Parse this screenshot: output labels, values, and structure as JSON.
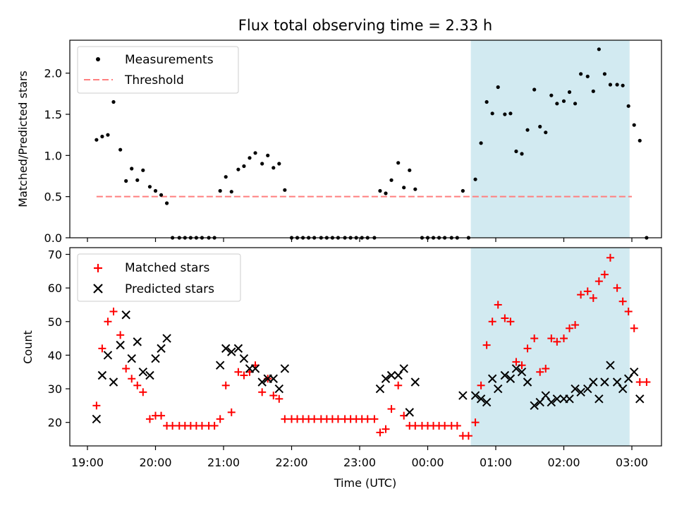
{
  "title": "Flux total observing time = 2.33 h",
  "xlabel": "Time (UTC)",
  "xticks": [
    "19:00",
    "20:00",
    "21:00",
    "22:00",
    "23:00",
    "00:00",
    "01:00",
    "02:00",
    "03:00"
  ],
  "colors": {
    "measurement": "#000000",
    "threshold": "#ff7f7f",
    "matched": "#ff0000",
    "predicted": "#000000",
    "shade": "#add8e6"
  },
  "chart_data": [
    {
      "type": "scatter",
      "ylabel": "Matched/Predicted stars",
      "ylim": [
        0,
        2.4
      ],
      "yticks": [
        "0.0",
        "0.5",
        "1.0",
        "1.5",
        "2.0"
      ],
      "legend": {
        "placement": "upper-left",
        "entries": [
          "Measurements",
          "Threshold"
        ]
      },
      "threshold": {
        "value": 0.5,
        "x_start": "19:08",
        "x_end": "03:00"
      },
      "shaded_interval": [
        "00:38",
        "02:58"
      ],
      "series": [
        {
          "name": "Measurements",
          "points": [
            [
              "19:08",
              1.19
            ],
            [
              "19:13",
              1.23
            ],
            [
              "19:18",
              1.25
            ],
            [
              "19:23",
              1.65
            ],
            [
              "19:29",
              1.07
            ],
            [
              "19:34",
              0.69
            ],
            [
              "19:39",
              0.84
            ],
            [
              "19:44",
              0.7
            ],
            [
              "19:49",
              0.82
            ],
            [
              "19:55",
              0.62
            ],
            [
              "20:00",
              0.57
            ],
            [
              "20:05",
              0.52
            ],
            [
              "20:10",
              0.42
            ],
            [
              "20:15",
              0
            ],
            [
              "20:21",
              0
            ],
            [
              "20:26",
              0
            ],
            [
              "20:31",
              0
            ],
            [
              "20:36",
              0
            ],
            [
              "20:41",
              0
            ],
            [
              "20:47",
              0
            ],
            [
              "20:52",
              0
            ],
            [
              "20:57",
              0.57
            ],
            [
              "21:02",
              0.74
            ],
            [
              "21:07",
              0.56
            ],
            [
              "21:13",
              0.83
            ],
            [
              "21:18",
              0.87
            ],
            [
              "21:23",
              0.97
            ],
            [
              "21:28",
              1.03
            ],
            [
              "21:34",
              0.9
            ],
            [
              "21:39",
              1.0
            ],
            [
              "21:44",
              0.85
            ],
            [
              "21:49",
              0.9
            ],
            [
              "21:54",
              0.58
            ],
            [
              "22:00",
              0
            ],
            [
              "22:05",
              0
            ],
            [
              "22:10",
              0
            ],
            [
              "22:15",
              0
            ],
            [
              "22:20",
              0
            ],
            [
              "22:26",
              0
            ],
            [
              "22:31",
              0
            ],
            [
              "22:36",
              0
            ],
            [
              "22:41",
              0
            ],
            [
              "22:47",
              0
            ],
            [
              "22:52",
              0
            ],
            [
              "22:57",
              0
            ],
            [
              "23:02",
              0
            ],
            [
              "23:07",
              0
            ],
            [
              "23:13",
              0
            ],
            [
              "23:18",
              0.57
            ],
            [
              "23:23",
              0.54
            ],
            [
              "23:28",
              0.7
            ],
            [
              "23:34",
              0.91
            ],
            [
              "23:39",
              0.61
            ],
            [
              "23:44",
              0.82
            ],
            [
              "23:49",
              0.59
            ],
            [
              "23:55",
              0
            ],
            [
              "00:00",
              0
            ],
            [
              "00:05",
              0
            ],
            [
              "00:10",
              0
            ],
            [
              "00:15",
              0
            ],
            [
              "00:21",
              0
            ],
            [
              "00:26",
              0
            ],
            [
              "00:31",
              0.57
            ],
            [
              "00:36",
              0
            ],
            [
              "00:42",
              0.71
            ],
            [
              "00:47",
              1.15
            ],
            [
              "00:52",
              1.65
            ],
            [
              "00:57",
              1.51
            ],
            [
              "01:02",
              1.83
            ],
            [
              "01:08",
              1.5
            ],
            [
              "01:13",
              1.51
            ],
            [
              "01:18",
              1.05
            ],
            [
              "01:23",
              1.02
            ],
            [
              "01:28",
              1.31
            ],
            [
              "01:34",
              1.8
            ],
            [
              "01:39",
              1.35
            ],
            [
              "01:44",
              1.28
            ],
            [
              "01:49",
              1.73
            ],
            [
              "01:54",
              1.63
            ],
            [
              "02:00",
              1.66
            ],
            [
              "02:05",
              1.77
            ],
            [
              "02:10",
              1.63
            ],
            [
              "02:15",
              1.99
            ],
            [
              "02:21",
              1.96
            ],
            [
              "02:26",
              1.78
            ],
            [
              "02:31",
              2.29
            ],
            [
              "02:36",
              1.99
            ],
            [
              "02:41",
              1.86
            ],
            [
              "02:47",
              1.86
            ],
            [
              "02:52",
              1.85
            ],
            [
              "02:57",
              1.6
            ],
            [
              "03:02",
              1.37
            ],
            [
              "03:07",
              1.18
            ],
            [
              "03:13",
              0
            ]
          ]
        }
      ]
    },
    {
      "type": "scatter",
      "ylabel": "Count",
      "ylim": [
        13,
        72
      ],
      "yticks": [
        "20",
        "30",
        "40",
        "50",
        "60",
        "70"
      ],
      "legend": {
        "placement": "upper-left",
        "entries": [
          "Matched stars",
          "Predicted stars"
        ]
      },
      "shaded_interval": [
        "00:38",
        "02:58"
      ],
      "series": [
        {
          "name": "Matched stars",
          "points": [
            [
              "19:08",
              25
            ],
            [
              "19:13",
              42
            ],
            [
              "19:18",
              50
            ],
            [
              "19:23",
              53
            ],
            [
              "19:29",
              46
            ],
            [
              "19:34",
              36
            ],
            [
              "19:39",
              33
            ],
            [
              "19:44",
              31
            ],
            [
              "19:49",
              29
            ],
            [
              "19:55",
              21
            ],
            [
              "20:00",
              22
            ],
            [
              "20:05",
              22
            ],
            [
              "20:10",
              19
            ],
            [
              "20:15",
              19
            ],
            [
              "20:21",
              19
            ],
            [
              "20:26",
              19
            ],
            [
              "20:31",
              19
            ],
            [
              "20:36",
              19
            ],
            [
              "20:41",
              19
            ],
            [
              "20:47",
              19
            ],
            [
              "20:52",
              19
            ],
            [
              "20:57",
              21
            ],
            [
              "21:02",
              31
            ],
            [
              "21:07",
              23
            ],
            [
              "21:13",
              35
            ],
            [
              "21:18",
              34
            ],
            [
              "21:23",
              35
            ],
            [
              "21:28",
              37
            ],
            [
              "21:34",
              29
            ],
            [
              "21:39",
              33
            ],
            [
              "21:44",
              28
            ],
            [
              "21:49",
              27
            ],
            [
              "21:54",
              21
            ],
            [
              "22:00",
              21
            ],
            [
              "22:05",
              21
            ],
            [
              "22:10",
              21
            ],
            [
              "22:15",
              21
            ],
            [
              "22:20",
              21
            ],
            [
              "22:26",
              21
            ],
            [
              "22:31",
              21
            ],
            [
              "22:36",
              21
            ],
            [
              "22:41",
              21
            ],
            [
              "22:47",
              21
            ],
            [
              "22:52",
              21
            ],
            [
              "22:57",
              21
            ],
            [
              "23:02",
              21
            ],
            [
              "23:07",
              21
            ],
            [
              "23:13",
              21
            ],
            [
              "23:18",
              17
            ],
            [
              "23:23",
              18
            ],
            [
              "23:28",
              24
            ],
            [
              "23:34",
              31
            ],
            [
              "23:39",
              22
            ],
            [
              "23:44",
              19
            ],
            [
              "23:49",
              19
            ],
            [
              "23:55",
              19
            ],
            [
              "00:00",
              19
            ],
            [
              "00:05",
              19
            ],
            [
              "00:10",
              19
            ],
            [
              "00:15",
              19
            ],
            [
              "00:21",
              19
            ],
            [
              "00:26",
              19
            ],
            [
              "00:31",
              16
            ],
            [
              "00:36",
              16
            ],
            [
              "00:42",
              20
            ],
            [
              "00:47",
              31
            ],
            [
              "00:52",
              43
            ],
            [
              "00:57",
              50
            ],
            [
              "01:02",
              55
            ],
            [
              "01:08",
              51
            ],
            [
              "01:13",
              50
            ],
            [
              "01:18",
              38
            ],
            [
              "01:23",
              37
            ],
            [
              "01:28",
              42
            ],
            [
              "01:34",
              45
            ],
            [
              "01:39",
              35
            ],
            [
              "01:44",
              36
            ],
            [
              "01:49",
              45
            ],
            [
              "01:54",
              44
            ],
            [
              "02:00",
              45
            ],
            [
              "02:05",
              48
            ],
            [
              "02:10",
              49
            ],
            [
              "02:15",
              58
            ],
            [
              "02:21",
              59
            ],
            [
              "02:26",
              57
            ],
            [
              "02:31",
              62
            ],
            [
              "02:36",
              64
            ],
            [
              "02:41",
              69
            ],
            [
              "02:47",
              60
            ],
            [
              "02:52",
              56
            ],
            [
              "02:57",
              53
            ],
            [
              "03:02",
              48
            ],
            [
              "03:07",
              32
            ],
            [
              "03:13",
              32
            ]
          ]
        },
        {
          "name": "Predicted stars",
          "points": [
            [
              "19:08",
              21
            ],
            [
              "19:13",
              34
            ],
            [
              "19:18",
              40
            ],
            [
              "19:23",
              32
            ],
            [
              "19:29",
              43
            ],
            [
              "19:34",
              52
            ],
            [
              "19:39",
              39
            ],
            [
              "19:44",
              44
            ],
            [
              "19:49",
              35
            ],
            [
              "19:55",
              34
            ],
            [
              "20:00",
              39
            ],
            [
              "20:05",
              42
            ],
            [
              "20:10",
              45
            ],
            [
              "20:57",
              37
            ],
            [
              "21:02",
              42
            ],
            [
              "21:07",
              41
            ],
            [
              "21:13",
              42
            ],
            [
              "21:18",
              39
            ],
            [
              "21:23",
              36
            ],
            [
              "21:28",
              36
            ],
            [
              "21:34",
              32
            ],
            [
              "21:39",
              33
            ],
            [
              "21:44",
              33
            ],
            [
              "21:49",
              30
            ],
            [
              "21:54",
              36
            ],
            [
              "23:18",
              30
            ],
            [
              "23:23",
              33
            ],
            [
              "23:28",
              34
            ],
            [
              "23:34",
              34
            ],
            [
              "23:39",
              36
            ],
            [
              "23:44",
              23
            ],
            [
              "23:49",
              32
            ],
            [
              "00:31",
              28
            ],
            [
              "00:42",
              28
            ],
            [
              "00:47",
              27
            ],
            [
              "00:52",
              26
            ],
            [
              "00:57",
              33
            ],
            [
              "01:02",
              30
            ],
            [
              "01:08",
              34
            ],
            [
              "01:13",
              33
            ],
            [
              "01:18",
              36
            ],
            [
              "01:23",
              35
            ],
            [
              "01:28",
              32
            ],
            [
              "01:34",
              25
            ],
            [
              "01:39",
              26
            ],
            [
              "01:44",
              28
            ],
            [
              "01:49",
              26
            ],
            [
              "01:54",
              27
            ],
            [
              "02:00",
              27
            ],
            [
              "02:05",
              27
            ],
            [
              "02:10",
              30
            ],
            [
              "02:15",
              29
            ],
            [
              "02:21",
              30
            ],
            [
              "02:26",
              32
            ],
            [
              "02:31",
              27
            ],
            [
              "02:36",
              32
            ],
            [
              "02:41",
              37
            ],
            [
              "02:47",
              32
            ],
            [
              "02:52",
              30
            ],
            [
              "02:57",
              33
            ],
            [
              "03:02",
              35
            ],
            [
              "03:07",
              27
            ]
          ]
        }
      ]
    }
  ]
}
